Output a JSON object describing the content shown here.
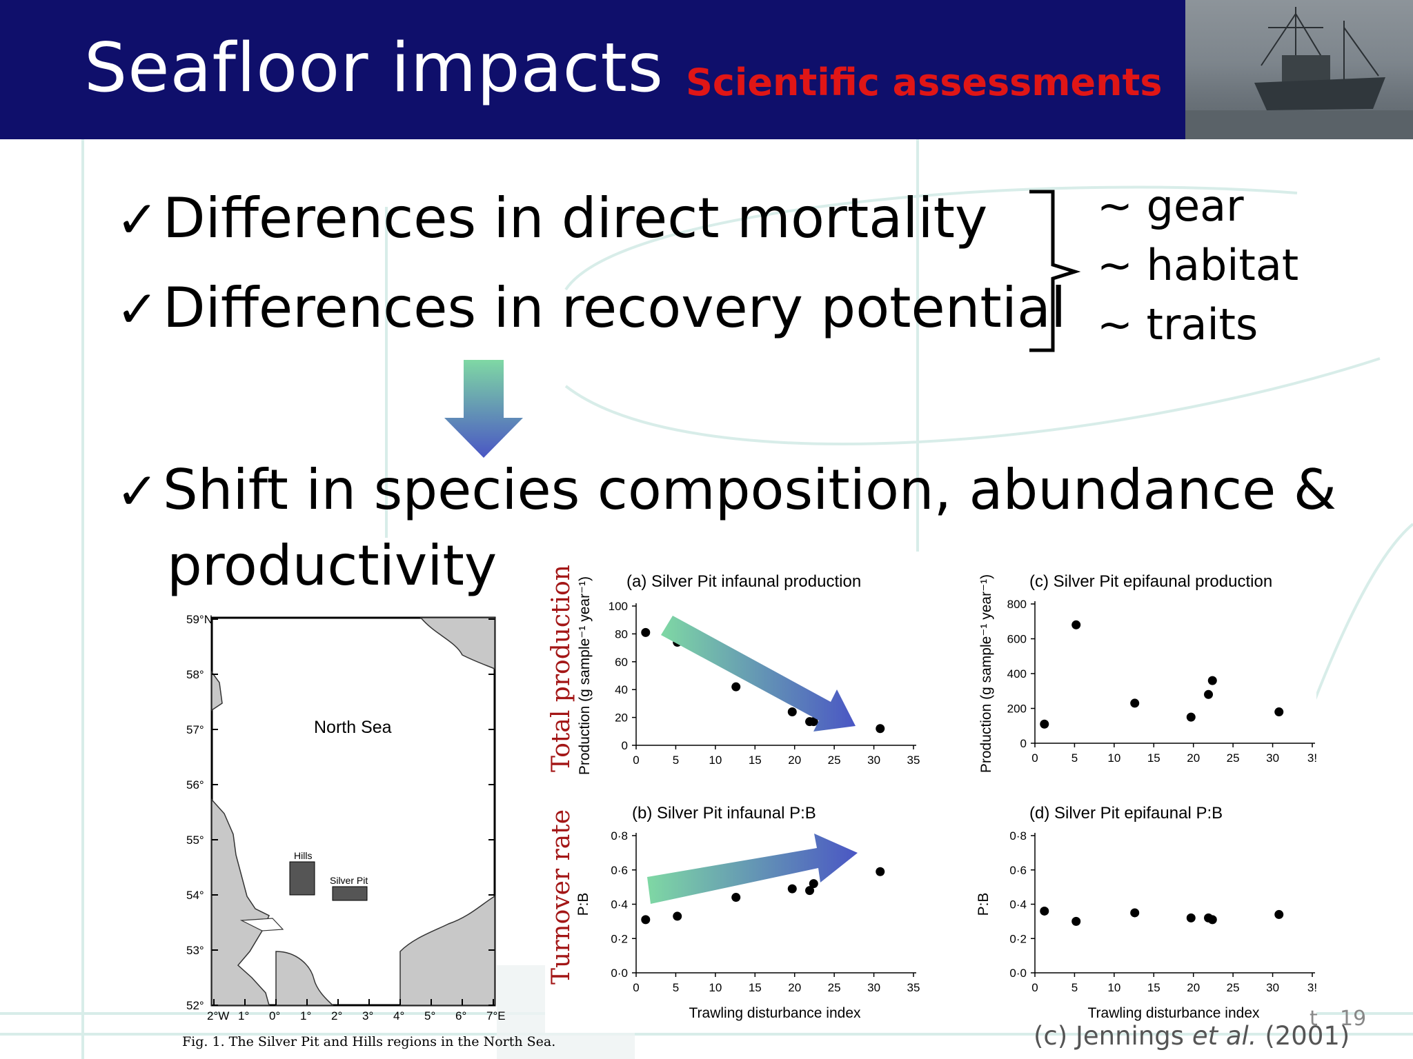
{
  "header": {
    "title": "Seafloor impacts",
    "subtitle": "Scientific assessments",
    "title_bg": "#0f0f6b",
    "subtitle_color": "#e01616"
  },
  "bullets": [
    {
      "icon": "checkmark-icon",
      "text": "Differences in direct mortality"
    },
    {
      "icon": "checkmark-icon",
      "text": "Differences in recovery potential"
    },
    {
      "icon": "checkmark-icon",
      "text": "Shift in species composition, abundance &",
      "cont": "productivity"
    }
  ],
  "factors": [
    "~ gear",
    "~ habitat",
    "~ traits"
  ],
  "arrow_icon": "arrow-down-icon",
  "map": {
    "sea_label": "North Sea",
    "region_hills": "Hills",
    "region_silver_pit": "Silver Pit",
    "lat_labels": [
      "59°N",
      "58°",
      "57°",
      "56°",
      "55°",
      "54°",
      "53°",
      "52°"
    ],
    "lon_labels": [
      "2°W",
      "1°",
      "0°",
      "1°",
      "2°",
      "3°",
      "4°",
      "5°",
      "6°",
      "7°E"
    ],
    "caption": "Fig. 1.  The Silver Pit and Hills regions in the North Sea."
  },
  "row_labels": {
    "top": "Total production",
    "bottom": "Turnover rate",
    "color": "#a31616"
  },
  "chart_data": [
    {
      "type": "scatter",
      "title": "(a) Silver Pit infaunal production",
      "xlabel": "",
      "ylabel": "Production (g sample⁻¹ year⁻¹)",
      "xlim": [
        0,
        35
      ],
      "ylim": [
        0,
        100
      ],
      "xticks": [
        "0",
        "5",
        "10",
        "15",
        "20",
        "25",
        "30",
        "35"
      ],
      "yticks": [
        "0",
        "20",
        "40",
        "60",
        "80",
        "100"
      ],
      "x": [
        1.2,
        5.2,
        12.6,
        19.7,
        21.9,
        22.4,
        30.8
      ],
      "y": [
        81,
        74,
        42,
        24,
        17,
        17,
        12
      ],
      "trend": "decreasing"
    },
    {
      "type": "scatter",
      "title": "(b) Silver Pit infaunal P:B",
      "xlabel": "Trawling disturbance index",
      "ylabel": "P:B",
      "xlim": [
        0,
        35
      ],
      "ylim": [
        0,
        0.8
      ],
      "xticks": [
        "0",
        "5",
        "10",
        "15",
        "20",
        "25",
        "30",
        "35"
      ],
      "yticks": [
        "0·0",
        "0·2",
        "0·4",
        "0·6",
        "0·8"
      ],
      "x": [
        1.2,
        5.2,
        12.6,
        19.7,
        21.9,
        22.4,
        30.8
      ],
      "y": [
        0.31,
        0.33,
        0.44,
        0.49,
        0.48,
        0.52,
        0.59
      ],
      "trend": "increasing"
    },
    {
      "type": "scatter",
      "title": "(c) Silver Pit epifaunal production",
      "xlabel": "",
      "ylabel": "Production (g sample⁻¹ year⁻¹)",
      "xlim": [
        0,
        35
      ],
      "ylim": [
        0,
        800
      ],
      "xticks": [
        "0",
        "5",
        "10",
        "15",
        "20",
        "25",
        "30",
        "3!"
      ],
      "yticks": [
        "0",
        "200",
        "400",
        "600",
        "800"
      ],
      "x": [
        1.2,
        5.2,
        12.6,
        19.7,
        21.9,
        22.4,
        30.8
      ],
      "y": [
        110,
        680,
        230,
        150,
        280,
        360,
        180
      ]
    },
    {
      "type": "scatter",
      "title": "(d) Silver Pit epifaunal P:B",
      "xlabel": "Trawling disturbance index",
      "ylabel": "P:B",
      "xlim": [
        0,
        35
      ],
      "ylim": [
        0,
        0.8
      ],
      "xticks": [
        "0",
        "5",
        "10",
        "15",
        "20",
        "25",
        "30",
        "3!"
      ],
      "yticks": [
        "0·0",
        "0·2",
        "0·4",
        "0·6",
        "0·8"
      ],
      "x": [
        1.2,
        5.2,
        12.6,
        19.7,
        21.9,
        22.4,
        30.8
      ],
      "y": [
        0.36,
        0.3,
        0.35,
        0.32,
        0.32,
        0.31,
        0.34
      ]
    }
  ],
  "credit": {
    "prefix": "(c) Jennings ",
    "etal": "et al.",
    "year": " (2001)"
  },
  "page_fragment": "t",
  "page_number": "19",
  "colors": {
    "arrow_top": "#7fd8a4",
    "arrow_bottom": "#4a56c4",
    "map_land": "#c8c8c8"
  }
}
